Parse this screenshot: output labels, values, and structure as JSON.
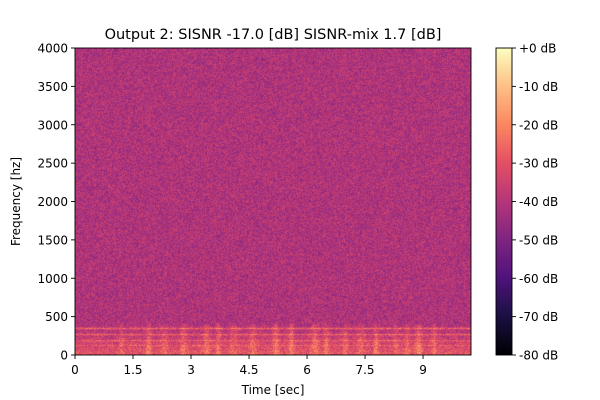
{
  "chart_data": {
    "type": "heatmap",
    "title": "Output 2: SISNR -17.0 [dB] SISNR-mix 1.7 [dB]",
    "xlabel": "Time [sec]",
    "ylabel": "Frequency [hz]",
    "xlim": [
      0,
      10.24
    ],
    "ylim": [
      0,
      4000
    ],
    "x_ticks": [
      0,
      1.5,
      3,
      4.5,
      6,
      7.5,
      9
    ],
    "x_tick_labels": [
      "0",
      "1.5",
      "3",
      "4.5",
      "6",
      "7.5",
      "9"
    ],
    "y_ticks": [
      0,
      500,
      1000,
      1500,
      2000,
      2500,
      3000,
      3500,
      4000
    ],
    "y_tick_labels": [
      "0",
      "500",
      "1000",
      "1500",
      "2000",
      "2500",
      "3000",
      "3500",
      "4000"
    ],
    "colorbar": {
      "range_db": [
        -80,
        0
      ],
      "ticks": [
        0,
        -10,
        -20,
        -30,
        -40,
        -50,
        -60,
        -70,
        -80
      ],
      "tick_labels": [
        "+0 dB",
        "-10 dB",
        "-20 dB",
        "-30 dB",
        "-40 dB",
        "-50 dB",
        "-60 dB",
        "-70 dB",
        "-80 dB"
      ],
      "colormap": "magma"
    },
    "approx_content": {
      "background_level_db": -55,
      "edge_level_db": -70,
      "low_band_hz": [
        0,
        400
      ],
      "low_band_level_db": -25,
      "harmonic_lines_hz": [
        120,
        180,
        260,
        340
      ],
      "energy_columns_sec": [
        1.2,
        1.9,
        2.3,
        2.8,
        3.4,
        3.7,
        4.1,
        4.6,
        5.2,
        5.6,
        6.2,
        6.5,
        7.0,
        7.4,
        7.8,
        8.3,
        8.6,
        8.9,
        9.3
      ]
    }
  }
}
